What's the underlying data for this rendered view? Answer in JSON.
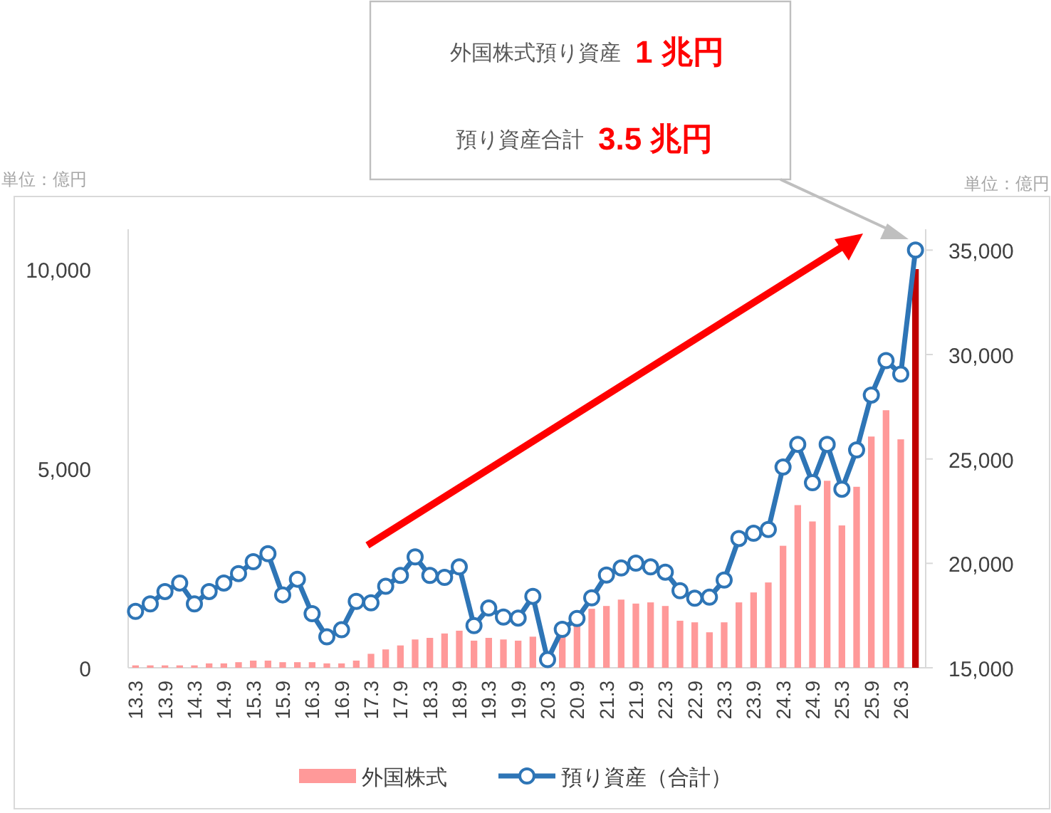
{
  "chart_data": {
    "type": "bar",
    "categories": [
      "13.3",
      null,
      "13.9",
      null,
      "14.3",
      null,
      "14.9",
      null,
      "15.3",
      null,
      "15.9",
      null,
      "16.3",
      null,
      "16.9",
      null,
      "17.3",
      null,
      "17.9",
      null,
      "18.3",
      null,
      "18.9",
      null,
      "19.3",
      null,
      "19.9",
      null,
      "20.3",
      null,
      "20.9",
      null,
      "21.3",
      null,
      "21.9",
      null,
      "22.3",
      null,
      "22.9",
      null,
      "23.3",
      null,
      "23.9",
      null,
      "24.3",
      null,
      "24.9",
      null,
      "25.3",
      null,
      "25.9",
      null,
      "26.3",
      null
    ],
    "series": [
      {
        "name": "外国株式",
        "color": "#ff9999",
        "colors": [
          "#ff9999",
          "#ff9999",
          "#ff9999",
          "#ff9999",
          "#ff9999",
          "#ff9999",
          "#ff9999",
          "#ff9999",
          "#ff9999",
          "#ff9999",
          "#ff9999",
          "#ff9999",
          "#ff9999",
          "#ff9999",
          "#ff9999",
          "#ff9999",
          "#ff9999",
          "#ff9999",
          "#ff9999",
          "#ff9999",
          "#ff9999",
          "#ff9999",
          "#ff9999",
          "#ff9999",
          "#ff9999",
          "#ff9999",
          "#ff9999",
          "#ff9999",
          null,
          "#ff9999",
          "#ff9999",
          "#ff9999",
          "#ff9999",
          "#ff9999",
          "#ff9999",
          "#ff9999",
          "#ff9999",
          "#ff9999",
          "#ff9999",
          "#ff9999",
          "#ff9999",
          "#ff9999",
          "#ff9999",
          "#ff9999",
          "#ff9999",
          "#ff9999",
          "#ff9999",
          "#ff9999",
          "#ff9999",
          "#ff9999",
          "#ff9999",
          "#ff9999",
          "#ff9999",
          "#c00000"
        ],
        "values": [
          60,
          60,
          60,
          60,
          60,
          110,
          110,
          140,
          180,
          180,
          140,
          140,
          140,
          110,
          110,
          180,
          350,
          460,
          560,
          710,
          750,
          860,
          930,
          680,
          750,
          710,
          680,
          780,
          null,
          780,
          1040,
          1480,
          1550,
          1710,
          1610,
          1640,
          1550,
          1180,
          1140,
          890,
          1140,
          1640,
          1890,
          2140,
          3060,
          4080,
          3670,
          4690,
          3570,
          4540,
          5800,
          6460,
          5730,
          10000
        ]
      },
      {
        "name": "預り資産（合計）",
        "type": "line",
        "axis": "y2",
        "color": "#2e75b6",
        "marker": "circle",
        "line_style": "solid",
        "values": [
          17700,
          18060,
          18650,
          19060,
          18060,
          18650,
          19060,
          19510,
          20080,
          20460,
          18490,
          19240,
          17590,
          16480,
          16820,
          18180,
          18110,
          18900,
          19420,
          20310,
          19420,
          19330,
          19830,
          17020,
          17860,
          17430,
          17380,
          18420,
          15390,
          16840,
          17360,
          18350,
          19440,
          19780,
          20010,
          19830,
          19580,
          18690,
          18330,
          18380,
          19200,
          21190,
          21440,
          21620,
          24610,
          25700,
          23860,
          25700,
          23550,
          25430,
          28060,
          29710,
          29060,
          35000
        ]
      }
    ],
    "ylim": [
      0,
      11000
    ],
    "yticks": [
      0,
      {
        "value": 5000,
        "label": "5,000"
      },
      {
        "value": 10000,
        "label": "10,000"
      }
    ],
    "y2lim": [
      15000,
      36000
    ],
    "y2ticks": [
      {
        "value": 15000,
        "label": "15,000"
      },
      {
        "value": 20000,
        "label": "20,000"
      },
      {
        "value": 25000,
        "label": "25,000"
      },
      {
        "value": 30000,
        "label": "30,000"
      },
      {
        "value": 35000,
        "label": "35,000"
      }
    ],
    "ylabel": "単位：億円",
    "y2label": "単位：億円",
    "annotations": [
      "外国株式預り資産",
      "1 兆円",
      "預り資産合計",
      "3.5 兆円"
    ],
    "legend": "bottom",
    "grid": false
  }
}
